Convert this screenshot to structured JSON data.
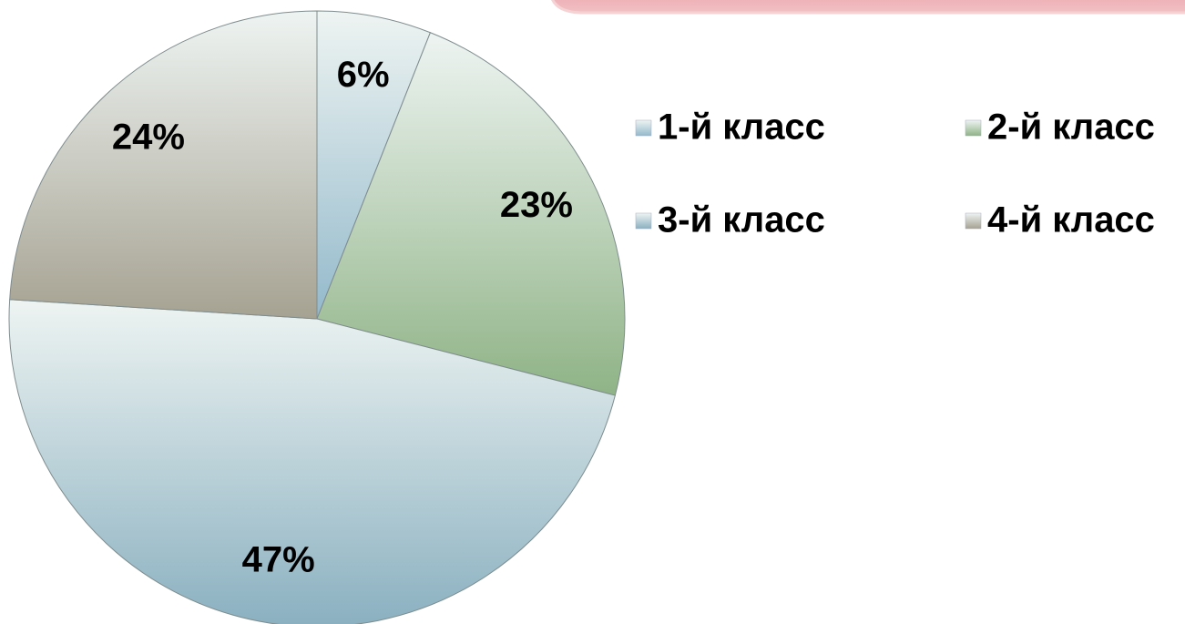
{
  "chart_data": {
    "type": "pie",
    "categories": [
      "1-й класс",
      "2-й класс",
      "3-й класс",
      "4-й класс"
    ],
    "values": [
      6,
      23,
      47,
      24
    ],
    "value_labels": [
      "6%",
      "23%",
      "47%",
      "24%"
    ],
    "colors": [
      "#93b9cb",
      "#8fb386",
      "#8ab0c0",
      "#a6a292"
    ],
    "legend": "right"
  }
}
